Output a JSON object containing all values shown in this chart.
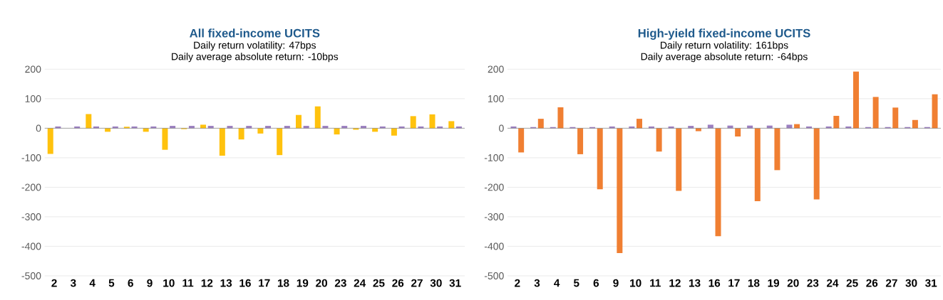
{
  "chart_data": [
    {
      "type": "bar",
      "title": "All fixed-income UCITS",
      "subtitle": "Daily return volatility: 47bps",
      "annotations": [
        "Daily average absolute return: -10bps"
      ],
      "categories": [
        "2",
        "3",
        "4",
        "5",
        "6",
        "9",
        "10",
        "11",
        "12",
        "13",
        "16",
        "17",
        "18",
        "19",
        "20",
        "23",
        "24",
        "25",
        "26",
        "27",
        "30",
        "31"
      ],
      "series": [
        {
          "color": "#ffc20e",
          "values": [
            -87,
            null,
            48,
            -12,
            5,
            -12,
            -73,
            -3,
            12,
            -93,
            -38,
            -18,
            -91,
            45,
            74,
            -21,
            -5,
            -12,
            -25,
            41,
            47,
            24
          ]
        },
        {
          "color": "#9b7fc0",
          "values": [
            6,
            6,
            6,
            6,
            6,
            6,
            8,
            8,
            8,
            8,
            8,
            8,
            8,
            8,
            8,
            8,
            8,
            6,
            6,
            6,
            6,
            6
          ]
        }
      ],
      "ylim": [
        -500,
        200
      ],
      "yticks": [
        -500,
        -400,
        -300,
        -200,
        -100,
        0,
        100,
        200
      ],
      "grid": "y"
    },
    {
      "type": "bar",
      "title": "High-yield fixed-income UCITS",
      "subtitle": "Daily return volatility: 161bps",
      "annotations": [
        "Daily average absolute return: -64bps"
      ],
      "categories": [
        "2",
        "3",
        "4",
        "5",
        "6",
        "9",
        "10",
        "11",
        "12",
        "13",
        "16",
        "17",
        "18",
        "19",
        "20",
        "23",
        "24",
        "25",
        "26",
        "27",
        "30",
        "31"
      ],
      "series": [
        {
          "color": "#9b7fc0",
          "values": [
            6,
            4,
            4,
            4,
            4,
            6,
            6,
            6,
            6,
            8,
            12,
            9,
            9,
            9,
            12,
            6,
            6,
            6,
            4,
            4,
            4,
            4
          ]
        },
        {
          "color": "#f07f32",
          "values": [
            -82,
            32,
            71,
            -88,
            -207,
            -423,
            32,
            -79,
            -212,
            -10,
            -366,
            -28,
            -247,
            -142,
            14,
            -241,
            42,
            192,
            106,
            70,
            28,
            115
          ]
        }
      ],
      "ylim": [
        -500,
        200
      ],
      "yticks": [
        -500,
        -400,
        -300,
        -200,
        -100,
        0,
        100,
        200
      ],
      "grid": "y"
    }
  ]
}
